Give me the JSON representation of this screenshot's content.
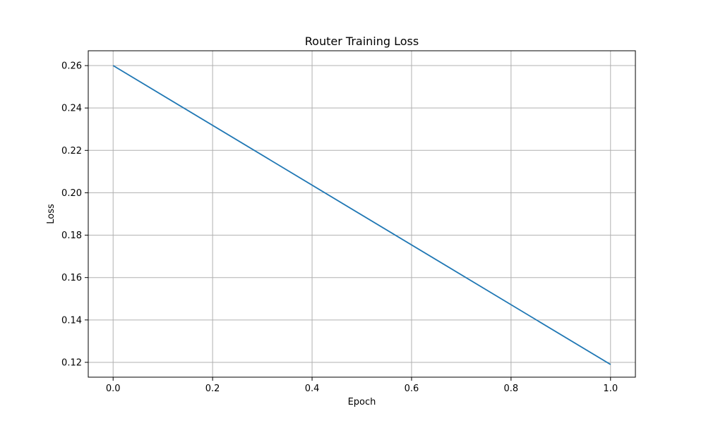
{
  "chart_data": {
    "type": "line",
    "title": "Router Training Loss",
    "xlabel": "Epoch",
    "ylabel": "Loss",
    "xlim": [
      -0.05,
      1.05
    ],
    "ylim": [
      0.113,
      0.267
    ],
    "grid": true,
    "x_ticks": [
      0.0,
      0.2,
      0.4,
      0.6,
      0.8,
      1.0
    ],
    "x_tick_labels": [
      "0.0",
      "0.2",
      "0.4",
      "0.6",
      "0.8",
      "1.0"
    ],
    "y_ticks": [
      0.12,
      0.14,
      0.16,
      0.18,
      0.2,
      0.22,
      0.24,
      0.26
    ],
    "y_tick_labels": [
      "0.12",
      "0.14",
      "0.16",
      "0.18",
      "0.20",
      "0.22",
      "0.24",
      "0.26"
    ],
    "series": [
      {
        "color": "#1f77b4",
        "x": [
          0.0,
          1.0
        ],
        "y": [
          0.26,
          0.119
        ]
      }
    ]
  }
}
